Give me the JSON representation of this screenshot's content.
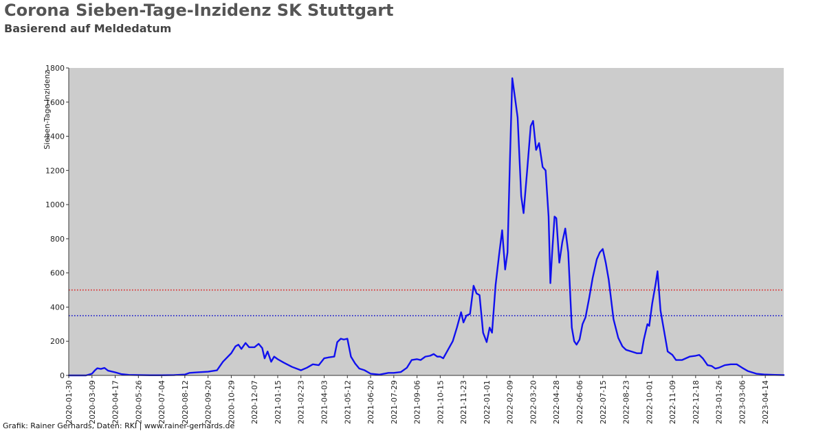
{
  "header": {
    "title": "Corona Sieben-Tage-Inzidenz SK Stuttgart",
    "subtitle": "Basierend auf Meldedatum"
  },
  "footer": {
    "credit": "Grafik: Rainer Gerhards, Daten: RKI | www.rainer-gerhards.de"
  },
  "colors": {
    "plot_background": "#cccccc",
    "series": "#1010ee",
    "threshold_high": "#dd2222",
    "threshold_low": "#1a1acc"
  },
  "chart_data": {
    "type": "line",
    "title": "Corona Sieben-Tage-Inzidenz SK Stuttgart",
    "subtitle": "Basierend auf Meldedatum",
    "xlabel": "",
    "ylabel": "Sieben-Tage-Inzidenz",
    "ylim": [
      0,
      1800
    ],
    "xlim": [
      "2020-01-30",
      "2023-05-15"
    ],
    "yticks": [
      0,
      200,
      400,
      600,
      800,
      1000,
      1200,
      1400,
      1600,
      1800
    ],
    "xticks": [
      "2020-01-30",
      "2020-03-09",
      "2020-04-17",
      "2020-05-26",
      "2020-07-04",
      "2020-08-12",
      "2020-09-20",
      "2020-10-29",
      "2020-12-07",
      "2021-01-15",
      "2021-02-23",
      "2021-04-03",
      "2021-05-12",
      "2021-06-20",
      "2021-07-29",
      "2021-09-06",
      "2021-10-15",
      "2021-11-23",
      "2022-01-01",
      "2022-02-09",
      "2022-03-20",
      "2022-04-28",
      "2022-06-06",
      "2022-07-15",
      "2022-08-23",
      "2022-10-01",
      "2022-11-09",
      "2022-12-18",
      "2023-01-26",
      "2023-03-06",
      "2023-04-14"
    ],
    "grid": false,
    "legend": "none",
    "reference_lines": [
      {
        "y": 500,
        "style": "dotted",
        "color": "#dd2222"
      },
      {
        "y": 350,
        "style": "dotted",
        "color": "#1a1acc"
      }
    ],
    "series": [
      {
        "points": [
          [
            "2020-01-30",
            0
          ],
          [
            "2020-02-28",
            0
          ],
          [
            "2020-03-09",
            10
          ],
          [
            "2020-03-14",
            30
          ],
          [
            "2020-03-18",
            42
          ],
          [
            "2020-03-24",
            38
          ],
          [
            "2020-03-30",
            44
          ],
          [
            "2020-04-05",
            28
          ],
          [
            "2020-04-17",
            18
          ],
          [
            "2020-04-27",
            8
          ],
          [
            "2020-05-10",
            3
          ],
          [
            "2020-05-26",
            2
          ],
          [
            "2020-06-15",
            1
          ],
          [
            "2020-07-04",
            1
          ],
          [
            "2020-07-25",
            2
          ],
          [
            "2020-08-12",
            5
          ],
          [
            "2020-08-20",
            15
          ],
          [
            "2020-09-01",
            18
          ],
          [
            "2020-09-20",
            22
          ],
          [
            "2020-10-05",
            30
          ],
          [
            "2020-10-15",
            80
          ],
          [
            "2020-10-29",
            130
          ],
          [
            "2020-11-05",
            170
          ],
          [
            "2020-11-10",
            180
          ],
          [
            "2020-11-15",
            155
          ],
          [
            "2020-11-22",
            190
          ],
          [
            "2020-11-28",
            165
          ],
          [
            "2020-12-07",
            165
          ],
          [
            "2020-12-14",
            185
          ],
          [
            "2020-12-20",
            160
          ],
          [
            "2020-12-24",
            100
          ],
          [
            "2020-12-29",
            140
          ],
          [
            "2021-01-04",
            80
          ],
          [
            "2021-01-09",
            110
          ],
          [
            "2021-01-15",
            95
          ],
          [
            "2021-01-25",
            75
          ],
          [
            "2021-02-08",
            50
          ],
          [
            "2021-02-23",
            30
          ],
          [
            "2021-03-05",
            45
          ],
          [
            "2021-03-15",
            65
          ],
          [
            "2021-03-25",
            60
          ],
          [
            "2021-04-03",
            100
          ],
          [
            "2021-04-10",
            105
          ],
          [
            "2021-04-20",
            110
          ],
          [
            "2021-04-25",
            195
          ],
          [
            "2021-05-01",
            215
          ],
          [
            "2021-05-06",
            210
          ],
          [
            "2021-05-12",
            215
          ],
          [
            "2021-05-18",
            110
          ],
          [
            "2021-05-25",
            70
          ],
          [
            "2021-06-01",
            40
          ],
          [
            "2021-06-10",
            30
          ],
          [
            "2021-06-20",
            10
          ],
          [
            "2021-07-05",
            5
          ],
          [
            "2021-07-20",
            15
          ],
          [
            "2021-07-29",
            15
          ],
          [
            "2021-08-10",
            20
          ],
          [
            "2021-08-20",
            45
          ],
          [
            "2021-08-28",
            90
          ],
          [
            "2021-09-06",
            95
          ],
          [
            "2021-09-12",
            90
          ],
          [
            "2021-09-20",
            110
          ],
          [
            "2021-09-28",
            115
          ],
          [
            "2021-10-04",
            125
          ],
          [
            "2021-10-10",
            110
          ],
          [
            "2021-10-15",
            110
          ],
          [
            "2021-10-20",
            100
          ],
          [
            "2021-10-28",
            150
          ],
          [
            "2021-11-05",
            200
          ],
          [
            "2021-11-12",
            280
          ],
          [
            "2021-11-19",
            370
          ],
          [
            "2021-11-23",
            310
          ],
          [
            "2021-11-28",
            350
          ],
          [
            "2021-12-04",
            360
          ],
          [
            "2021-12-10",
            525
          ],
          [
            "2021-12-15",
            480
          ],
          [
            "2021-12-20",
            470
          ],
          [
            "2021-12-26",
            250
          ],
          [
            "2022-01-01",
            195
          ],
          [
            "2022-01-06",
            280
          ],
          [
            "2022-01-10",
            250
          ],
          [
            "2022-01-16",
            530
          ],
          [
            "2022-01-22",
            710
          ],
          [
            "2022-01-27",
            850
          ],
          [
            "2022-02-01",
            620
          ],
          [
            "2022-02-05",
            720
          ],
          [
            "2022-02-09",
            1250
          ],
          [
            "2022-02-13",
            1740
          ],
          [
            "2022-02-17",
            1640
          ],
          [
            "2022-02-22",
            1510
          ],
          [
            "2022-02-28",
            1050
          ],
          [
            "2022-03-04",
            950
          ],
          [
            "2022-03-10",
            1200
          ],
          [
            "2022-03-16",
            1460
          ],
          [
            "2022-03-20",
            1490
          ],
          [
            "2022-03-25",
            1320
          ],
          [
            "2022-03-30",
            1360
          ],
          [
            "2022-04-05",
            1220
          ],
          [
            "2022-04-10",
            1200
          ],
          [
            "2022-04-15",
            930
          ],
          [
            "2022-04-18",
            540
          ],
          [
            "2022-04-21",
            720
          ],
          [
            "2022-04-25",
            930
          ],
          [
            "2022-04-28",
            920
          ],
          [
            "2022-05-03",
            660
          ],
          [
            "2022-05-08",
            780
          ],
          [
            "2022-05-13",
            860
          ],
          [
            "2022-05-18",
            720
          ],
          [
            "2022-05-24",
            280
          ],
          [
            "2022-05-28",
            200
          ],
          [
            "2022-06-01",
            180
          ],
          [
            "2022-06-06",
            210
          ],
          [
            "2022-06-11",
            300
          ],
          [
            "2022-06-16",
            340
          ],
          [
            "2022-06-22",
            450
          ],
          [
            "2022-06-28",
            570
          ],
          [
            "2022-07-05",
            680
          ],
          [
            "2022-07-10",
            720
          ],
          [
            "2022-07-15",
            740
          ],
          [
            "2022-07-20",
            660
          ],
          [
            "2022-07-25",
            560
          ],
          [
            "2022-08-02",
            330
          ],
          [
            "2022-08-10",
            220
          ],
          [
            "2022-08-17",
            170
          ],
          [
            "2022-08-23",
            150
          ],
          [
            "2022-09-01",
            140
          ],
          [
            "2022-09-10",
            130
          ],
          [
            "2022-09-18",
            130
          ],
          [
            "2022-09-22",
            210
          ],
          [
            "2022-09-28",
            300
          ],
          [
            "2022-10-01",
            290
          ],
          [
            "2022-10-06",
            420
          ],
          [
            "2022-10-12",
            540
          ],
          [
            "2022-10-15",
            610
          ],
          [
            "2022-10-20",
            380
          ],
          [
            "2022-10-26",
            260
          ],
          [
            "2022-11-01",
            140
          ],
          [
            "2022-11-09",
            120
          ],
          [
            "2022-11-15",
            90
          ],
          [
            "2022-11-25",
            90
          ],
          [
            "2022-12-08",
            110
          ],
          [
            "2022-12-18",
            115
          ],
          [
            "2022-12-24",
            120
          ],
          [
            "2022-12-30",
            100
          ],
          [
            "2023-01-07",
            60
          ],
          [
            "2023-01-14",
            55
          ],
          [
            "2023-01-20",
            40
          ],
          [
            "2023-01-26",
            45
          ],
          [
            "2023-02-05",
            60
          ],
          [
            "2023-02-15",
            65
          ],
          [
            "2023-02-25",
            65
          ],
          [
            "2023-03-06",
            45
          ],
          [
            "2023-03-16",
            25
          ],
          [
            "2023-03-30",
            10
          ],
          [
            "2023-04-14",
            5
          ],
          [
            "2023-04-30",
            3
          ],
          [
            "2023-05-15",
            2
          ]
        ]
      }
    ]
  }
}
